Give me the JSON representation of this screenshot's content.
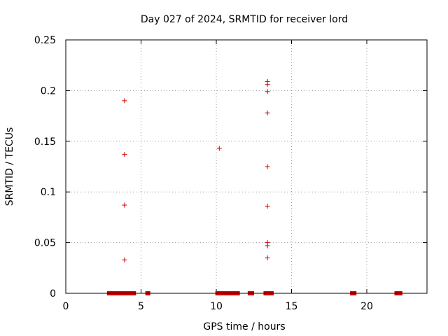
{
  "chart_data": {
    "type": "scatter",
    "title": "Day 027 of 2024, SRMTID for receiver lord",
    "xlabel": "GPS time / hours",
    "ylabel": "SRMTID / TECUs",
    "xlim": [
      0,
      24
    ],
    "ylim": [
      0,
      0.25
    ],
    "xticks": [
      0,
      5,
      10,
      15,
      20
    ],
    "yticks": [
      0,
      0.05,
      0.1,
      0.15,
      0.2,
      0.25
    ],
    "ytick_labels": [
      "0",
      "0.05",
      "0.1",
      "0.15",
      "0.2",
      "0.25"
    ],
    "xtick_labels": [
      "0",
      "5",
      "10",
      "15",
      "20"
    ],
    "grid": true,
    "marker": "plus",
    "marker_color": "#cc0000",
    "points": [
      {
        "x": 3.9,
        "y": 0.19
      },
      {
        "x": 3.9,
        "y": 0.137
      },
      {
        "x": 3.9,
        "y": 0.087
      },
      {
        "x": 3.9,
        "y": 0.033
      },
      {
        "x": 10.2,
        "y": 0.143
      },
      {
        "x": 13.4,
        "y": 0.209
      },
      {
        "x": 13.4,
        "y": 0.206
      },
      {
        "x": 13.4,
        "y": 0.199
      },
      {
        "x": 13.4,
        "y": 0.178
      },
      {
        "x": 13.4,
        "y": 0.125
      },
      {
        "x": 13.4,
        "y": 0.086
      },
      {
        "x": 13.4,
        "y": 0.05
      },
      {
        "x": 13.4,
        "y": 0.047
      },
      {
        "x": 13.4,
        "y": 0.035
      }
    ],
    "zero_x": [
      2.9,
      3.0,
      3.1,
      3.2,
      3.3,
      3.4,
      3.5,
      3.6,
      3.7,
      3.8,
      3.9,
      4.0,
      4.1,
      4.2,
      4.3,
      4.4,
      4.5,
      5.45,
      10.1,
      10.2,
      10.3,
      10.4,
      10.5,
      10.6,
      10.7,
      10.8,
      10.9,
      11.0,
      11.1,
      11.2,
      11.3,
      11.4,
      12.25,
      12.35,
      13.3,
      13.55,
      13.65,
      19.05,
      19.15,
      22.0,
      22.1,
      22.2
    ]
  }
}
